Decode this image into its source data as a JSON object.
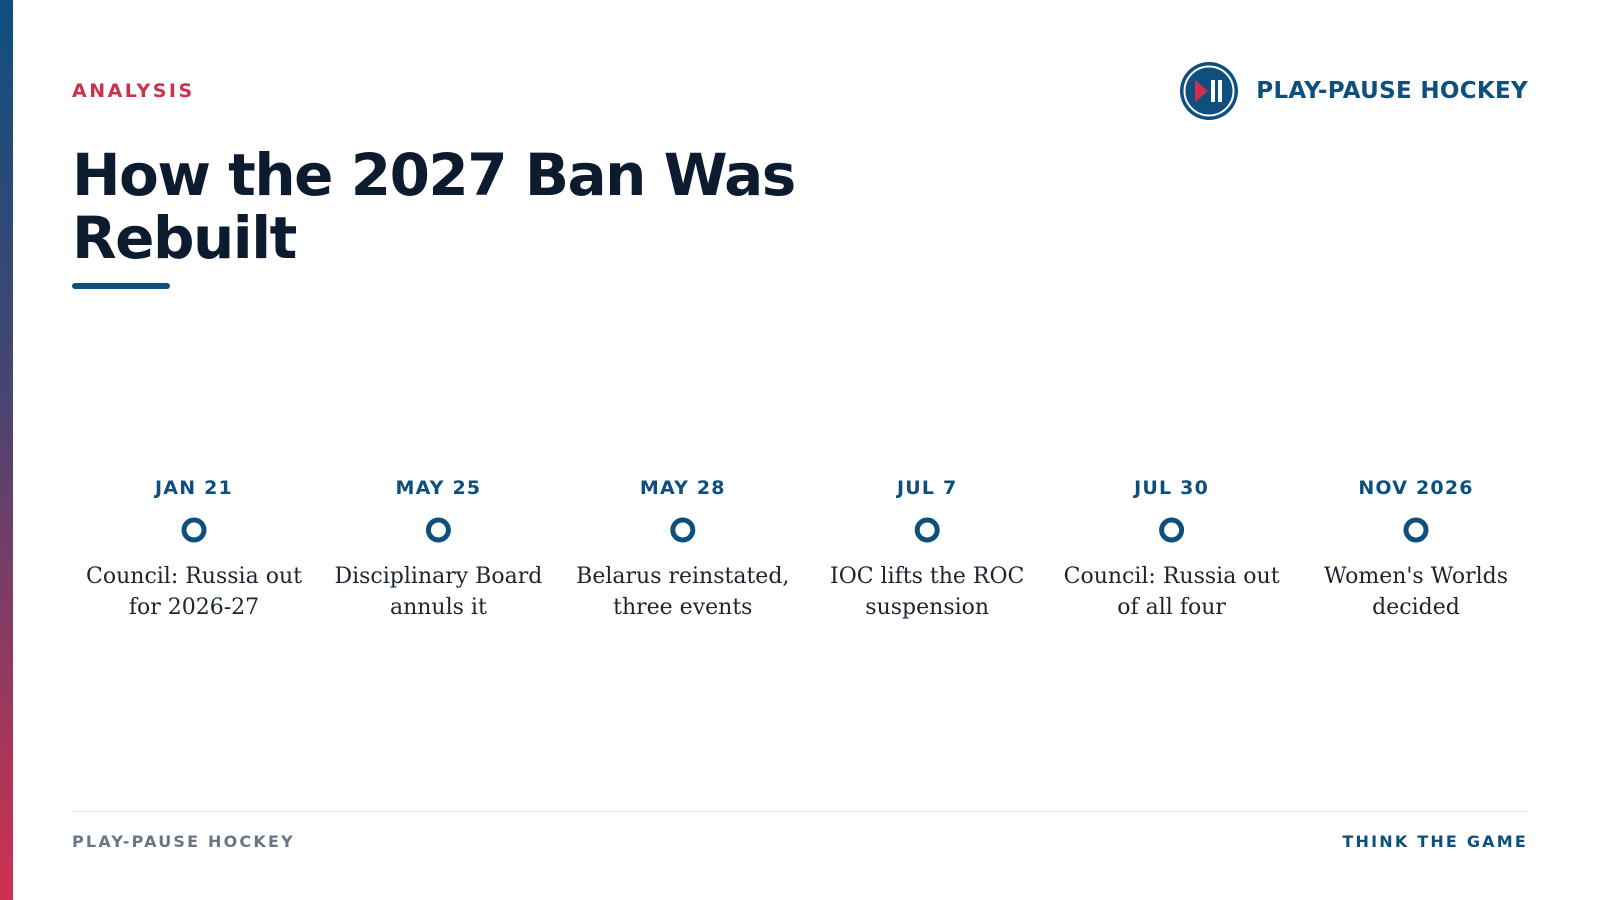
{
  "header": {
    "kicker": "ANALYSIS",
    "title": "How the 2027 Ban Was Rebuilt"
  },
  "brand": {
    "name": "PLAY-PAUSE HOCKEY",
    "logo_icon": "play-pause-icon"
  },
  "timeline": {
    "events": [
      {
        "date": "JAN 21",
        "label": "Council: Russia out for 2026-27"
      },
      {
        "date": "MAY 25",
        "label": "Disciplinary Board annuls it"
      },
      {
        "date": "MAY 28",
        "label": "Belarus reinstated, three events"
      },
      {
        "date": "JUL 7",
        "label": "IOC lifts the ROC suspension"
      },
      {
        "date": "JUL 30",
        "label": "Council: Russia out of all four"
      },
      {
        "date": "NOV 2026",
        "label": "Women's Worlds decided"
      }
    ]
  },
  "footer": {
    "left": "PLAY-PAUSE HOCKEY",
    "right": "THINK THE GAME"
  },
  "colors": {
    "navy": "#0e4f7e",
    "red": "#c8334e",
    "ink": "#0d1b2e"
  }
}
